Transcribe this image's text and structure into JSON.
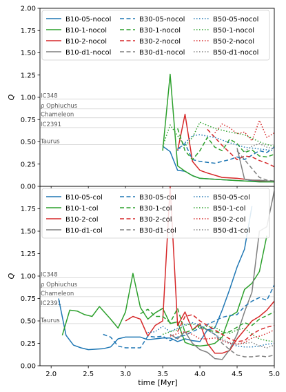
{
  "chart_data": [
    {
      "type": "line",
      "panel": "top",
      "xlim": [
        1.85,
        5.0
      ],
      "ylim": [
        0.0,
        2.0
      ],
      "yticks": [
        "0.00",
        "0.25",
        "0.50",
        "0.75",
        "1.00",
        "1.25",
        "1.50",
        "1.75",
        "2.00"
      ],
      "ylabel": "Q",
      "xlabel": "",
      "grid": false,
      "legend_position": "top",
      "reference_lines": [
        {
          "label": "IC348",
          "y": 0.98
        },
        {
          "label": "ρ Ophiuchus",
          "y": 0.87
        },
        {
          "label": "Chameleon",
          "y": 0.77
        },
        {
          "label": "IC2391",
          "y": 0.66
        },
        {
          "label": "Taurus",
          "y": 0.47
        }
      ],
      "series": [
        {
          "name": "B10-05-nocol",
          "color": "#1f77b4",
          "dash": "solid",
          "x": [
            3.5,
            3.6,
            3.7,
            3.8,
            3.9,
            4.0,
            4.2,
            4.4,
            4.6,
            4.8,
            5.0
          ],
          "y": [
            0.45,
            0.39,
            0.18,
            0.17,
            0.12,
            0.09,
            0.08,
            0.07,
            0.06,
            0.06,
            0.06
          ]
        },
        {
          "name": "B10-1-nocol",
          "color": "#2ca02c",
          "dash": "solid",
          "x": [
            3.5,
            3.6,
            3.7,
            3.8,
            3.9,
            4.0,
            4.2,
            4.4,
            4.6,
            4.8,
            5.0
          ],
          "y": [
            0.4,
            1.26,
            0.23,
            0.17,
            0.12,
            0.09,
            0.08,
            0.07,
            0.06,
            0.05,
            0.05
          ]
        },
        {
          "name": "B10-2-nocol",
          "color": "#d62728",
          "dash": "solid",
          "x": [
            3.7,
            3.8,
            3.9,
            4.0,
            4.1,
            4.3,
            4.5,
            4.7,
            4.9,
            5.0
          ],
          "y": [
            0.4,
            0.81,
            0.28,
            0.18,
            0.15,
            0.1,
            0.09,
            0.07,
            0.06,
            0.06
          ]
        },
        {
          "name": "B10-d1-nocol",
          "color": "#7f7f7f",
          "dash": "solid",
          "x": [
            4.5,
            4.6,
            4.7,
            4.8,
            4.9,
            5.0
          ],
          "y": [
            0.43,
            0.08,
            0.07,
            0.07,
            0.06,
            0.06
          ]
        },
        {
          "name": "B30-05-nocol",
          "color": "#1f77b4",
          "dash": "dashed",
          "x": [
            3.7,
            3.8,
            3.9,
            4.0,
            4.2,
            4.4,
            4.5,
            4.6,
            4.7,
            4.8,
            4.9,
            5.0
          ],
          "y": [
            0.42,
            0.48,
            0.3,
            0.28,
            0.26,
            0.3,
            0.33,
            0.3,
            0.35,
            0.4,
            0.38,
            0.44
          ]
        },
        {
          "name": "B30-1-nocol",
          "color": "#2ca02c",
          "dash": "dashed",
          "x": [
            3.7,
            3.8,
            3.9,
            4.0,
            4.1,
            4.2,
            4.3,
            4.4,
            4.5,
            4.6,
            4.7,
            4.8,
            4.9,
            5.0
          ],
          "y": [
            0.65,
            0.4,
            0.3,
            0.4,
            0.55,
            0.44,
            0.4,
            0.53,
            0.48,
            0.38,
            0.41,
            0.34,
            0.33,
            0.36
          ]
        },
        {
          "name": "B30-2-nocol",
          "color": "#d62728",
          "dash": "dashed",
          "x": [
            4.1,
            4.2,
            4.3,
            4.4,
            4.5,
            4.6,
            4.7,
            4.8,
            4.9,
            5.0
          ],
          "y": [
            0.64,
            0.55,
            0.46,
            0.38,
            0.3,
            0.34,
            0.33,
            0.29,
            0.26,
            0.22
          ]
        },
        {
          "name": "B30-d1-nocol",
          "color": "#7f7f7f",
          "dash": "dashed",
          "x": [
            4.5,
            4.6,
            4.7,
            4.8,
            4.9,
            5.0
          ],
          "y": [
            0.4,
            0.3,
            0.2,
            0.1,
            0.07,
            0.06
          ]
        },
        {
          "name": "B50-05-nocol",
          "color": "#1f77b4",
          "dash": "dotted",
          "x": [
            3.7,
            3.8,
            3.9,
            4.0,
            4.2,
            4.4,
            4.6,
            4.8,
            5.0
          ],
          "y": [
            0.4,
            0.49,
            0.57,
            0.58,
            0.55,
            0.49,
            0.44,
            0.42,
            0.4
          ]
        },
        {
          "name": "B50-1-nocol",
          "color": "#2ca02c",
          "dash": "dotted",
          "x": [
            3.5,
            3.6,
            3.8,
            3.9,
            4.0,
            4.2,
            4.4,
            4.6,
            4.8,
            4.9,
            5.0
          ],
          "y": [
            0.45,
            0.69,
            0.45,
            0.55,
            0.72,
            0.65,
            0.61,
            0.58,
            0.5,
            0.47,
            0.45
          ]
        },
        {
          "name": "B50-2-nocol",
          "color": "#d62728",
          "dash": "dotted",
          "x": [
            4.2,
            4.3,
            4.4,
            4.5,
            4.6,
            4.7,
            4.8,
            4.9,
            5.0
          ],
          "y": [
            0.6,
            0.7,
            0.66,
            0.59,
            0.61,
            0.51,
            0.74,
            0.55,
            0.6
          ]
        },
        {
          "name": "B50-d1-nocol",
          "color": "#7f7f7f",
          "dash": "dotted",
          "x": [
            4.6,
            4.7,
            4.8,
            4.9,
            5.0
          ],
          "y": [
            0.39,
            0.45,
            0.48,
            0.44,
            0.42
          ]
        }
      ]
    },
    {
      "type": "line",
      "panel": "bottom",
      "xlim": [
        1.85,
        5.0
      ],
      "ylim": [
        0.0,
        2.0
      ],
      "xticks": [
        "2.0",
        "2.5",
        "3.0",
        "3.5",
        "4.0",
        "4.5",
        "5.0"
      ],
      "yticks": [
        "0.00",
        "0.25",
        "0.50",
        "0.75",
        "1.00",
        "1.25",
        "1.50",
        "1.75"
      ],
      "ylabel": "Q",
      "xlabel": "time [Myr]",
      "grid": false,
      "legend_position": "top",
      "reference_lines": [
        {
          "label": "IC348",
          "y": 0.98
        },
        {
          "label": "ρ Ophiuchus",
          "y": 0.87
        },
        {
          "label": "Chameleon",
          "y": 0.77
        },
        {
          "label": "IC2391",
          "y": 0.66
        },
        {
          "label": "Taurus",
          "y": 0.47
        }
      ],
      "series": [
        {
          "name": "B10-05-col",
          "color": "#1f77b4",
          "dash": "solid",
          "x": [
            2.1,
            2.2,
            2.3,
            2.4,
            2.5,
            2.7,
            2.8,
            2.9,
            3.0,
            3.2,
            3.3,
            3.5,
            3.6,
            3.7,
            3.8,
            3.9,
            4.0,
            4.1,
            4.2,
            4.3,
            4.4,
            4.5,
            4.6,
            4.7
          ],
          "y": [
            0.75,
            0.34,
            0.23,
            0.2,
            0.18,
            0.19,
            0.21,
            0.3,
            0.32,
            0.32,
            0.29,
            0.31,
            0.31,
            0.27,
            0.3,
            0.28,
            0.27,
            0.4,
            0.42,
            0.62,
            0.85,
            1.1,
            1.3,
            1.78
          ]
        },
        {
          "name": "B10-1-col",
          "color": "#2ca02c",
          "dash": "solid",
          "x": [
            2.15,
            2.25,
            2.35,
            2.45,
            2.55,
            2.65,
            2.8,
            2.9,
            3.0,
            3.1,
            3.2,
            3.3,
            3.4,
            3.5,
            3.6,
            3.7,
            3.8,
            3.9,
            4.0,
            4.1,
            4.2,
            4.3,
            4.4,
            4.5,
            4.6,
            4.7,
            4.8,
            4.9
          ],
          "y": [
            0.34,
            0.62,
            0.61,
            0.57,
            0.55,
            0.66,
            0.52,
            0.42,
            0.6,
            1.03,
            0.65,
            0.52,
            0.59,
            0.64,
            0.47,
            0.49,
            0.26,
            0.23,
            0.22,
            0.23,
            0.25,
            0.32,
            0.55,
            0.6,
            0.85,
            0.92,
            1.05,
            1.45
          ]
        },
        {
          "name": "B10-2-col",
          "color": "#d62728",
          "dash": "solid",
          "x": [
            3.0,
            3.1,
            3.2,
            3.3,
            3.4,
            3.5,
            3.6,
            3.7,
            3.8,
            3.9,
            4.0,
            4.1,
            4.2,
            4.3,
            4.4,
            4.5,
            4.6,
            4.7,
            4.8,
            4.9,
            5.0
          ],
          "y": [
            0.5,
            0.55,
            0.52,
            0.33,
            0.45,
            0.5,
            2.0,
            0.45,
            0.6,
            0.4,
            0.47,
            0.25,
            0.14,
            0.14,
            0.17,
            0.3,
            0.4,
            0.5,
            0.55,
            0.62,
            0.72
          ]
        },
        {
          "name": "B10-d1-col",
          "color": "#7f7f7f",
          "dash": "solid",
          "x": [
            3.6,
            3.7,
            3.8,
            3.9,
            4.0,
            4.1,
            4.2,
            4.3,
            4.4,
            4.5,
            4.6,
            4.7,
            4.8,
            4.9,
            5.0
          ],
          "y": [
            0.35,
            0.3,
            0.38,
            0.25,
            0.18,
            0.15,
            0.08,
            0.07,
            0.18,
            0.35,
            0.6,
            0.82,
            1.5,
            1.55,
            1.95
          ]
        },
        {
          "name": "B30-05-col",
          "color": "#1f77b4",
          "dash": "dashed",
          "x": [
            2.7,
            2.8,
            2.9,
            3.0,
            3.1,
            3.2,
            3.3,
            3.4,
            3.5,
            3.6,
            3.7,
            3.8,
            3.9,
            4.0,
            4.1,
            4.2,
            4.3,
            4.4,
            4.5,
            4.6,
            4.7,
            4.8,
            4.9,
            5.0
          ],
          "y": [
            0.35,
            0.32,
            0.22,
            0.2,
            0.2,
            0.2,
            0.33,
            0.32,
            0.33,
            0.28,
            0.32,
            0.34,
            0.38,
            0.42,
            0.46,
            0.5,
            0.54,
            0.56,
            0.57,
            0.66,
            0.72,
            0.76,
            0.73,
            0.9
          ]
        },
        {
          "name": "B30-1-col",
          "color": "#2ca02c",
          "dash": "dashed",
          "x": [
            3.2,
            3.3,
            3.4,
            3.5,
            3.6,
            3.7,
            3.8,
            3.9,
            4.0,
            4.1,
            4.2,
            4.3,
            4.4,
            4.5,
            4.6,
            4.7,
            4.8,
            4.9,
            5.0
          ],
          "y": [
            0.58,
            0.63,
            0.55,
            0.55,
            0.48,
            0.64,
            0.37,
            0.4,
            0.45,
            0.4,
            0.38,
            0.36,
            0.38,
            0.43,
            0.48,
            0.45,
            0.52,
            0.56,
            0.6
          ]
        },
        {
          "name": "B30-2-col",
          "color": "#d62728",
          "dash": "dashed",
          "x": [
            3.7,
            3.8,
            3.9,
            4.0,
            4.1,
            4.2,
            4.3,
            4.4,
            4.5,
            4.6,
            4.7,
            4.8,
            4.9,
            5.0
          ],
          "y": [
            0.38,
            0.55,
            0.57,
            0.5,
            0.45,
            0.4,
            0.35,
            0.3,
            0.27,
            0.28,
            0.35,
            0.4,
            0.43,
            0.45
          ]
        },
        {
          "name": "B30-d1-col",
          "color": "#7f7f7f",
          "dash": "dashed",
          "x": [
            4.0,
            4.1,
            4.2,
            4.3,
            4.4,
            4.5,
            4.6,
            4.7,
            4.8,
            4.9,
            5.0
          ],
          "y": [
            0.42,
            0.4,
            0.35,
            0.25,
            0.18,
            0.12,
            0.1,
            0.1,
            0.11,
            0.1,
            0.12
          ]
        },
        {
          "name": "B50-05-col",
          "color": "#1f77b4",
          "dash": "dotted",
          "x": [
            3.3,
            3.4,
            3.5,
            3.6,
            3.7,
            3.8,
            3.9,
            4.0,
            4.1,
            4.2,
            4.3,
            4.4,
            4.5,
            4.6,
            4.7,
            4.8,
            4.9,
            5.0
          ],
          "y": [
            0.37,
            0.38,
            0.44,
            0.38,
            0.42,
            0.46,
            0.48,
            0.45,
            0.4,
            0.35,
            0.28,
            0.25,
            0.22,
            0.21,
            0.21,
            0.22,
            0.24,
            0.25
          ]
        },
        {
          "name": "B50-1-col",
          "color": "#2ca02c",
          "dash": "dotted",
          "x": [
            3.5,
            3.6,
            3.7,
            3.8,
            3.9,
            4.0,
            4.1,
            4.2,
            4.3,
            4.4,
            4.5,
            4.6,
            4.7,
            4.8,
            4.9,
            5.0
          ],
          "y": [
            0.35,
            0.38,
            0.4,
            0.45,
            0.47,
            0.42,
            0.44,
            0.43,
            0.38,
            0.36,
            0.4,
            0.42,
            0.35,
            0.3,
            0.28,
            0.27
          ]
        },
        {
          "name": "B50-2-col",
          "color": "#d62728",
          "dash": "dotted",
          "x": [
            3.6,
            3.7,
            3.8,
            3.9,
            4.0,
            4.1,
            4.2,
            4.3,
            4.4,
            4.5,
            4.6,
            4.7,
            4.8,
            4.9,
            5.0
          ],
          "y": [
            0.33,
            0.36,
            0.38,
            0.35,
            0.3,
            0.3,
            0.31,
            0.28,
            0.25,
            0.24,
            0.26,
            0.31,
            0.33,
            0.36,
            0.4
          ]
        },
        {
          "name": "B50-d1-col",
          "color": "#7f7f7f",
          "dash": "dotted",
          "x": [
            4.0,
            4.1,
            4.2,
            4.3,
            4.4,
            4.5,
            4.6,
            4.7,
            4.8,
            4.9,
            5.0
          ],
          "y": [
            0.42,
            0.4,
            0.35,
            0.3,
            0.26,
            0.24,
            0.25,
            0.26,
            0.22,
            0.2,
            0.23
          ]
        }
      ]
    }
  ]
}
